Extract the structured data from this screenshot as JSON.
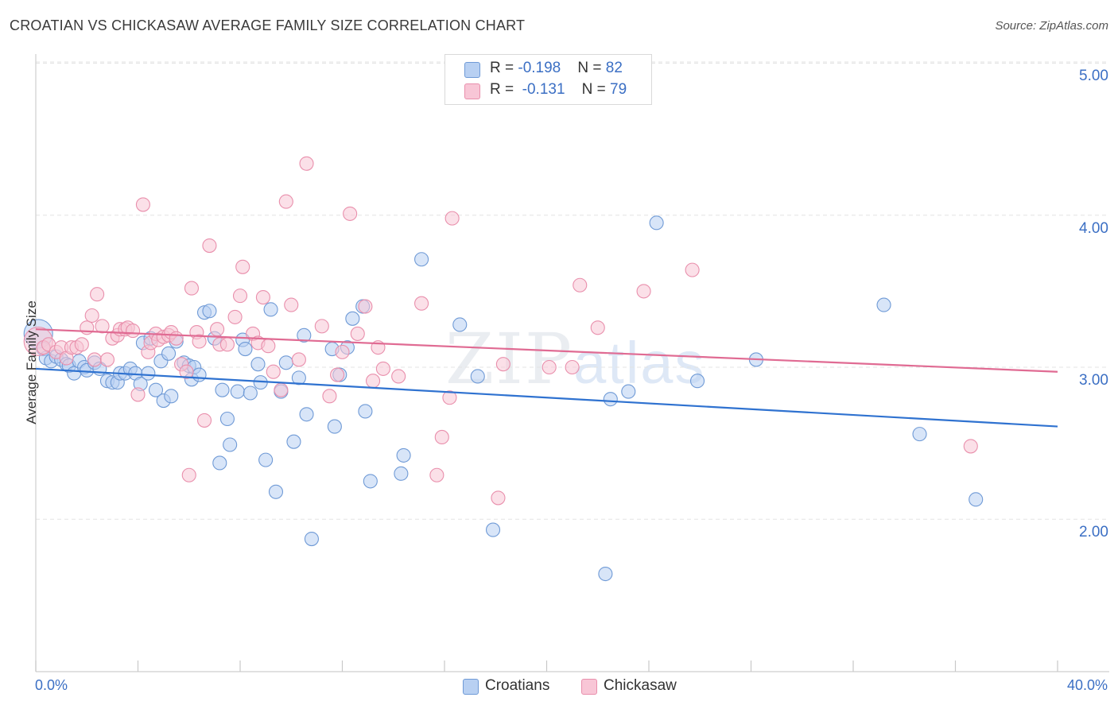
{
  "title": "CROATIAN VS CHICKASAW AVERAGE FAMILY SIZE CORRELATION CHART",
  "source": "Source: ZipAtlas.com",
  "watermark": {
    "zip": "ZIP",
    "atlas": "atlas"
  },
  "legend_top": [
    {
      "r_label": "R = ",
      "r_value": "-0.198",
      "n_label": "N = ",
      "n_value": "82"
    },
    {
      "r_label": "R = ",
      "r_value": "-0.131",
      "n_label": "N = ",
      "n_value": "79"
    }
  ],
  "legend_bottom": [
    "Croatians",
    "Chickasaw"
  ],
  "colors": {
    "croatians_fill": "#b8d0f2",
    "croatians_stroke": "#6f9ad6",
    "croatians_line": "#2f72d0",
    "chickasaw_fill": "#f8c6d6",
    "chickasaw_stroke": "#e98fac",
    "chickasaw_line": "#e06b93",
    "tick_text": "#3b6fc4",
    "grid": "#e3e3e3"
  },
  "chart_data": {
    "type": "scatter",
    "title": "CROATIAN VS CHICKASAW AVERAGE FAMILY SIZE CORRELATION CHART",
    "xlabel": "",
    "ylabel": "Average Family Size",
    "x_tick_labels": [
      "0.0%",
      "40.0%"
    ],
    "y_tick_labels": [
      "2.00",
      "3.00",
      "4.00",
      "5.00"
    ],
    "xlim": [
      0,
      40
    ],
    "ylim": [
      1.0,
      5.1
    ],
    "grid": true,
    "legend_position": "top-center",
    "series": [
      {
        "name": "Croatians",
        "r": -0.198,
        "n": 82,
        "trend": {
          "x": [
            0,
            40
          ],
          "y": [
            2.99,
            2.61
          ]
        },
        "points": [
          [
            0.1,
            3.22
          ],
          [
            0.3,
            3.12
          ],
          [
            0.4,
            3.06
          ],
          [
            0.6,
            3.04
          ],
          [
            0.8,
            3.07
          ],
          [
            1.0,
            3.05
          ],
          [
            1.2,
            3.02
          ],
          [
            1.3,
            3.01
          ],
          [
            1.5,
            2.96
          ],
          [
            1.7,
            3.04
          ],
          [
            1.9,
            3.0
          ],
          [
            2.0,
            2.98
          ],
          [
            2.3,
            3.03
          ],
          [
            2.5,
            2.99
          ],
          [
            2.8,
            2.91
          ],
          [
            3.0,
            2.9
          ],
          [
            3.2,
            2.9
          ],
          [
            3.3,
            2.96
          ],
          [
            3.5,
            2.96
          ],
          [
            3.7,
            2.99
          ],
          [
            3.9,
            2.96
          ],
          [
            4.1,
            2.89
          ],
          [
            4.2,
            3.16
          ],
          [
            4.4,
            2.96
          ],
          [
            4.5,
            3.19
          ],
          [
            4.7,
            2.85
          ],
          [
            4.9,
            3.04
          ],
          [
            5.0,
            2.78
          ],
          [
            5.2,
            3.09
          ],
          [
            5.3,
            2.81
          ],
          [
            5.5,
            3.17
          ],
          [
            5.8,
            3.03
          ],
          [
            6.0,
            3.01
          ],
          [
            6.1,
            2.92
          ],
          [
            6.2,
            3.0
          ],
          [
            6.4,
            2.95
          ],
          [
            6.6,
            3.36
          ],
          [
            6.8,
            3.37
          ],
          [
            7.0,
            3.19
          ],
          [
            7.2,
            2.37
          ],
          [
            7.3,
            2.85
          ],
          [
            7.5,
            2.66
          ],
          [
            7.6,
            2.49
          ],
          [
            7.9,
            2.84
          ],
          [
            8.1,
            3.18
          ],
          [
            8.2,
            3.12
          ],
          [
            8.4,
            2.83
          ],
          [
            8.7,
            3.02
          ],
          [
            8.8,
            2.9
          ],
          [
            9.0,
            2.39
          ],
          [
            9.2,
            3.38
          ],
          [
            9.4,
            2.18
          ],
          [
            9.6,
            2.84
          ],
          [
            9.8,
            3.03
          ],
          [
            10.1,
            2.51
          ],
          [
            10.3,
            2.93
          ],
          [
            10.5,
            3.21
          ],
          [
            10.6,
            2.69
          ],
          [
            10.8,
            1.87
          ],
          [
            11.6,
            3.12
          ],
          [
            11.7,
            2.61
          ],
          [
            11.9,
            2.95
          ],
          [
            12.2,
            3.13
          ],
          [
            12.4,
            3.32
          ],
          [
            12.8,
            3.4
          ],
          [
            12.9,
            2.71
          ],
          [
            13.1,
            2.25
          ],
          [
            14.3,
            2.3
          ],
          [
            14.4,
            2.42
          ],
          [
            15.1,
            3.71
          ],
          [
            16.6,
            3.28
          ],
          [
            17.3,
            2.94
          ],
          [
            17.9,
            1.93
          ],
          [
            22.3,
            1.64
          ],
          [
            22.5,
            2.79
          ],
          [
            23.2,
            2.84
          ],
          [
            24.3,
            3.95
          ],
          [
            25.9,
            2.91
          ],
          [
            28.2,
            3.05
          ],
          [
            33.2,
            3.41
          ],
          [
            34.6,
            2.56
          ],
          [
            36.8,
            2.13
          ]
        ]
      },
      {
        "name": "Chickasaw",
        "r": -0.131,
        "n": 79,
        "trend": {
          "x": [
            0,
            40
          ],
          "y": [
            3.25,
            2.97
          ]
        },
        "points": [
          [
            0.1,
            3.17
          ],
          [
            0.3,
            3.13
          ],
          [
            0.5,
            3.15
          ],
          [
            0.8,
            3.1
          ],
          [
            1.0,
            3.13
          ],
          [
            1.2,
            3.06
          ],
          [
            1.4,
            3.13
          ],
          [
            1.6,
            3.13
          ],
          [
            1.8,
            3.15
          ],
          [
            2.0,
            3.26
          ],
          [
            2.2,
            3.34
          ],
          [
            2.3,
            3.05
          ],
          [
            2.4,
            3.48
          ],
          [
            2.6,
            3.27
          ],
          [
            2.8,
            3.05
          ],
          [
            3.0,
            3.19
          ],
          [
            3.2,
            3.21
          ],
          [
            3.3,
            3.25
          ],
          [
            3.5,
            3.25
          ],
          [
            3.6,
            3.26
          ],
          [
            3.8,
            3.24
          ],
          [
            4.0,
            2.82
          ],
          [
            4.2,
            4.07
          ],
          [
            4.4,
            3.1
          ],
          [
            4.5,
            3.16
          ],
          [
            4.7,
            3.22
          ],
          [
            4.8,
            3.18
          ],
          [
            5.0,
            3.2
          ],
          [
            5.2,
            3.21
          ],
          [
            5.3,
            3.23
          ],
          [
            5.5,
            3.19
          ],
          [
            5.7,
            3.02
          ],
          [
            5.9,
            2.97
          ],
          [
            6.0,
            2.29
          ],
          [
            6.1,
            3.52
          ],
          [
            6.3,
            3.23
          ],
          [
            6.4,
            3.17
          ],
          [
            6.6,
            2.65
          ],
          [
            6.8,
            3.8
          ],
          [
            7.1,
            3.25
          ],
          [
            7.2,
            3.15
          ],
          [
            7.5,
            3.15
          ],
          [
            7.8,
            3.33
          ],
          [
            8.0,
            3.47
          ],
          [
            8.1,
            3.66
          ],
          [
            8.5,
            3.22
          ],
          [
            8.7,
            3.16
          ],
          [
            8.9,
            3.46
          ],
          [
            9.1,
            3.14
          ],
          [
            9.3,
            2.97
          ],
          [
            9.6,
            2.85
          ],
          [
            9.8,
            4.09
          ],
          [
            10.0,
            3.41
          ],
          [
            10.3,
            3.05
          ],
          [
            10.6,
            4.34
          ],
          [
            11.2,
            3.27
          ],
          [
            11.5,
            2.81
          ],
          [
            11.8,
            2.95
          ],
          [
            12.0,
            3.1
          ],
          [
            12.3,
            4.01
          ],
          [
            12.6,
            3.22
          ],
          [
            12.9,
            3.4
          ],
          [
            13.2,
            2.91
          ],
          [
            13.4,
            3.13
          ],
          [
            13.6,
            2.99
          ],
          [
            14.2,
            2.94
          ],
          [
            15.1,
            3.42
          ],
          [
            15.7,
            2.29
          ],
          [
            15.9,
            2.54
          ],
          [
            16.3,
            3.98
          ],
          [
            16.2,
            2.8
          ],
          [
            18.1,
            2.14
          ],
          [
            18.3,
            3.02
          ],
          [
            20.1,
            3.0
          ],
          [
            21.0,
            3.0
          ],
          [
            21.3,
            3.54
          ],
          [
            22.0,
            3.26
          ],
          [
            23.8,
            3.5
          ],
          [
            25.7,
            3.64
          ],
          [
            36.6,
            2.48
          ]
        ]
      }
    ]
  }
}
